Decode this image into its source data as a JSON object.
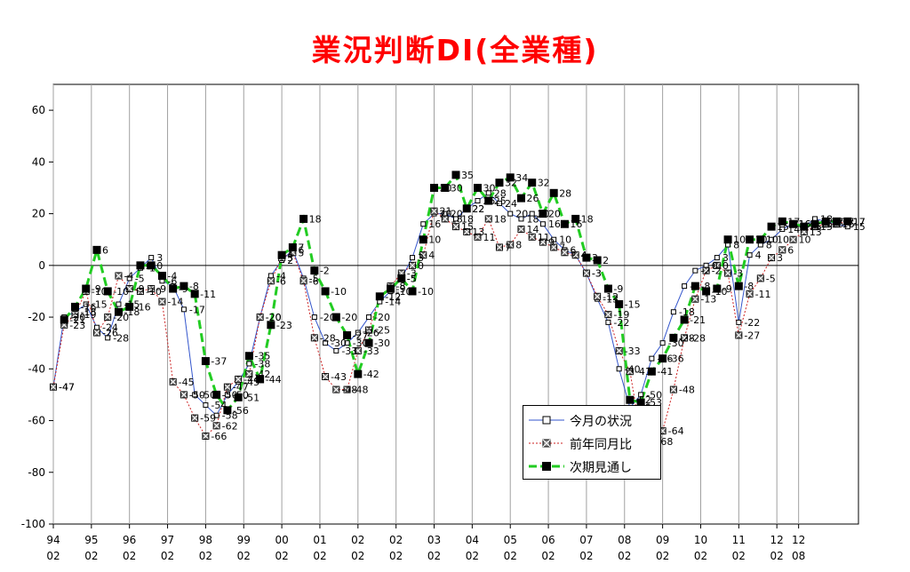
{
  "chart_data": {
    "type": "line",
    "title": "業況判断DI(全業種)",
    "ylim": [
      -100,
      70
    ],
    "yticks": [
      60,
      40,
      20,
      0,
      -20,
      -40,
      -60,
      -80,
      -100
    ],
    "grid": "vertical-only",
    "legend_position": "bottom-center",
    "x_period_labels": [
      "94",
      "95",
      "96",
      "97",
      "98",
      "99",
      "00",
      "01",
      "02",
      "02",
      "03",
      "04",
      "05",
      "06",
      "07",
      "08",
      "09",
      "10",
      "11",
      "12",
      "12"
    ],
    "x_sub_labels": [
      "02",
      "02",
      "02",
      "02",
      "02",
      "02",
      "02",
      "02",
      "02",
      "02",
      "02",
      "02",
      "02",
      "02",
      "02",
      "02",
      "02",
      "02",
      "02",
      "02",
      "08"
    ],
    "x_range": [
      0,
      74
    ],
    "tick_positions": [
      0,
      3.5,
      7,
      10.5,
      14,
      17.5,
      21,
      24.5,
      28,
      31.5,
      35,
      38.5,
      42,
      45.5,
      49,
      52.5,
      56,
      59.5,
      63,
      66.5,
      68.5
    ],
    "series": [
      {
        "name": "今月の状況",
        "color": "#3355cc",
        "marker": "open-square",
        "line": "solid",
        "x": [
          0,
          1,
          2,
          3,
          4,
          5,
          6,
          7,
          8,
          9,
          10,
          11,
          12,
          13,
          14,
          15,
          16,
          17,
          18,
          19,
          20,
          21,
          22,
          23,
          24,
          25,
          26,
          27,
          28,
          29,
          30,
          31,
          32,
          33,
          34,
          35,
          36,
          37,
          38,
          39,
          40,
          41,
          42,
          43,
          44,
          45,
          46,
          47,
          48,
          49,
          50,
          51,
          52,
          53,
          54,
          55,
          56,
          57,
          58,
          59,
          60,
          61,
          62,
          63,
          64,
          65,
          66,
          67,
          68,
          69,
          70,
          71,
          72,
          73
        ],
        "values": [
          -47,
          -20,
          -18,
          -15,
          -24,
          -28,
          -15,
          -5,
          -1,
          3,
          -6,
          -8,
          -17,
          -50,
          -54,
          -58,
          -50,
          -45,
          -38,
          -20,
          -4,
          2,
          6,
          -5,
          -20,
          -30,
          -33,
          -30,
          -26,
          -20,
          -14,
          -10,
          -5,
          3,
          16,
          20,
          20,
          18,
          22,
          25,
          28,
          24,
          20,
          18,
          20,
          16,
          10,
          6,
          4,
          -3,
          -13,
          -22,
          -40,
          -55,
          -50,
          -36,
          -30,
          -18,
          -8,
          -2,
          0,
          3,
          8,
          -22,
          4,
          8,
          10,
          14,
          16,
          15,
          18,
          17,
          16,
          15
        ]
      },
      {
        "name": "前年同月比",
        "color": "#cc2222",
        "marker": "x-square",
        "line": "dotted",
        "x": [
          0,
          1,
          2,
          3,
          4,
          5,
          6,
          7,
          8,
          9,
          10,
          11,
          12,
          13,
          14,
          15,
          16,
          17,
          18,
          19,
          20,
          21,
          22,
          23,
          24,
          25,
          26,
          27,
          28,
          29,
          30,
          31,
          32,
          33,
          34,
          35,
          36,
          37,
          38,
          39,
          40,
          41,
          42,
          43,
          44,
          45,
          46,
          47,
          48,
          49,
          50,
          51,
          52,
          53,
          54,
          55,
          56,
          57,
          58,
          59,
          60,
          61,
          62,
          63,
          64,
          65,
          66,
          67,
          68,
          69,
          70,
          71,
          72,
          73
        ],
        "values": [
          -47,
          -23,
          -19,
          -10,
          -26,
          -20,
          -4,
          -9,
          -10,
          -9,
          -14,
          -45,
          -50,
          -59,
          -66,
          -62,
          -47,
          -44,
          -42,
          -20,
          -6,
          3,
          5,
          -6,
          -28,
          -43,
          -48,
          -48,
          -33,
          -25,
          -12,
          -8,
          -3,
          0,
          4,
          21,
          18,
          15,
          13,
          11,
          18,
          7,
          8,
          14,
          11,
          9,
          7,
          5,
          4,
          -3,
          -12,
          -19,
          -33,
          -41,
          -66,
          -68,
          -64,
          -48,
          -28,
          -13,
          -2,
          0,
          -3,
          -27,
          -11,
          -5,
          3,
          6,
          10,
          13,
          15,
          16,
          16,
          17
        ]
      },
      {
        "name": "次期見通し",
        "color": "#22cc22",
        "marker": "filled-square",
        "line": "dashed",
        "x": [
          1,
          2,
          3,
          4,
          5,
          6,
          7,
          8,
          9,
          10,
          11,
          12,
          13,
          14,
          15,
          16,
          17,
          18,
          19,
          20,
          21,
          22,
          23,
          24,
          25,
          26,
          27,
          28,
          29,
          30,
          31,
          32,
          33,
          34,
          35,
          36,
          37,
          38,
          39,
          40,
          41,
          42,
          43,
          44,
          45,
          46,
          47,
          48,
          49,
          50,
          51,
          52,
          53,
          54,
          55,
          56,
          57,
          58,
          59,
          60,
          61,
          62,
          63,
          64,
          65,
          66,
          67,
          68,
          69,
          70,
          71,
          72,
          73
        ],
        "values": [
          -21,
          -16,
          -9,
          6,
          -10,
          -18,
          -16,
          0,
          0,
          -4,
          -9,
          -8,
          -11,
          -37,
          -50,
          -56,
          -51,
          -35,
          -44,
          -23,
          4,
          7,
          18,
          -2,
          -10,
          -20,
          -27,
          -42,
          -30,
          -12,
          -9,
          -5,
          -10,
          10,
          30,
          30,
          35,
          22,
          30,
          25,
          32,
          34,
          26,
          32,
          20,
          28,
          16,
          18,
          3,
          2,
          -9,
          -15,
          -52,
          -53,
          -41,
          -36,
          -28,
          -21,
          -8,
          -10,
          -9,
          10,
          -8,
          10,
          10,
          15,
          17,
          16,
          15,
          16,
          17,
          17,
          17
        ]
      }
    ]
  }
}
